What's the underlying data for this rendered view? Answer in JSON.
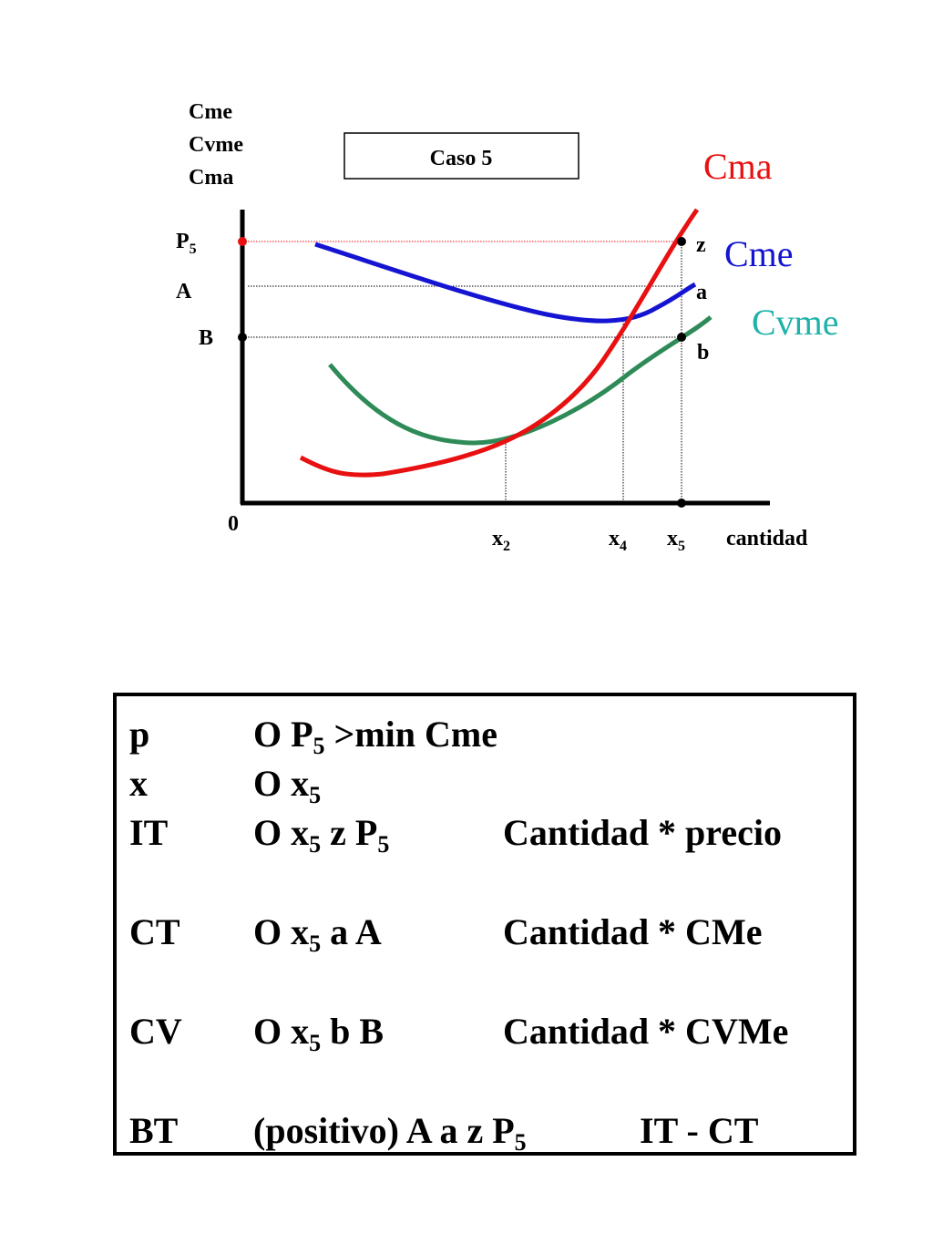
{
  "diagram": {
    "y_axis_label_lines": [
      "Cme",
      "Cvme",
      "Cma"
    ],
    "case_box": "Caso 5",
    "x_axis_label": "cantidad",
    "origin_label": "0",
    "y_ticks": [
      {
        "base": "P",
        "sub": "5"
      },
      {
        "base": "A",
        "sub": ""
      },
      {
        "base": "B",
        "sub": ""
      }
    ],
    "x_ticks": [
      {
        "base": "x",
        "sub": "2"
      },
      {
        "base": "x",
        "sub": "4"
      },
      {
        "base": "x",
        "sub": "5"
      }
    ],
    "point_labels": [
      "z",
      "a",
      "b"
    ],
    "curves": [
      {
        "name": "Cma",
        "color": "#e81010"
      },
      {
        "name": "Cme",
        "color": "#1414d2"
      },
      {
        "name": "Cvme",
        "color": "#2e8b57",
        "label_color": "#20b2aa"
      }
    ],
    "marker_colors": {
      "price": "#e81010",
      "other": "#000000"
    }
  },
  "summary": {
    "rows": [
      {
        "term": "p",
        "area": [
          {
            "t": "O P"
          },
          {
            "s": "5"
          },
          {
            "t": " >min Cme"
          }
        ],
        "formula": ""
      },
      {
        "term": "x",
        "area": [
          {
            "t": "O x"
          },
          {
            "s": "5"
          }
        ],
        "formula": ""
      },
      {
        "term": "IT",
        "area": [
          {
            "t": "O x"
          },
          {
            "s": "5"
          },
          {
            "t": " z P"
          },
          {
            "s": "5"
          }
        ],
        "formula": "Cantidad * precio"
      },
      {
        "term": "CT",
        "area": [
          {
            "t": "O x"
          },
          {
            "s": "5"
          },
          {
            "t": " a A"
          }
        ],
        "formula": "Cantidad * CMe"
      },
      {
        "term": "CV",
        "area": [
          {
            "t": "O x"
          },
          {
            "s": "5"
          },
          {
            "t": " b B"
          }
        ],
        "formula": "Cantidad * CVMe"
      },
      {
        "term": "BT",
        "area": [
          {
            "t": "(positivo) A a z P"
          },
          {
            "s": "5"
          }
        ],
        "formula": "IT - CT"
      }
    ]
  }
}
